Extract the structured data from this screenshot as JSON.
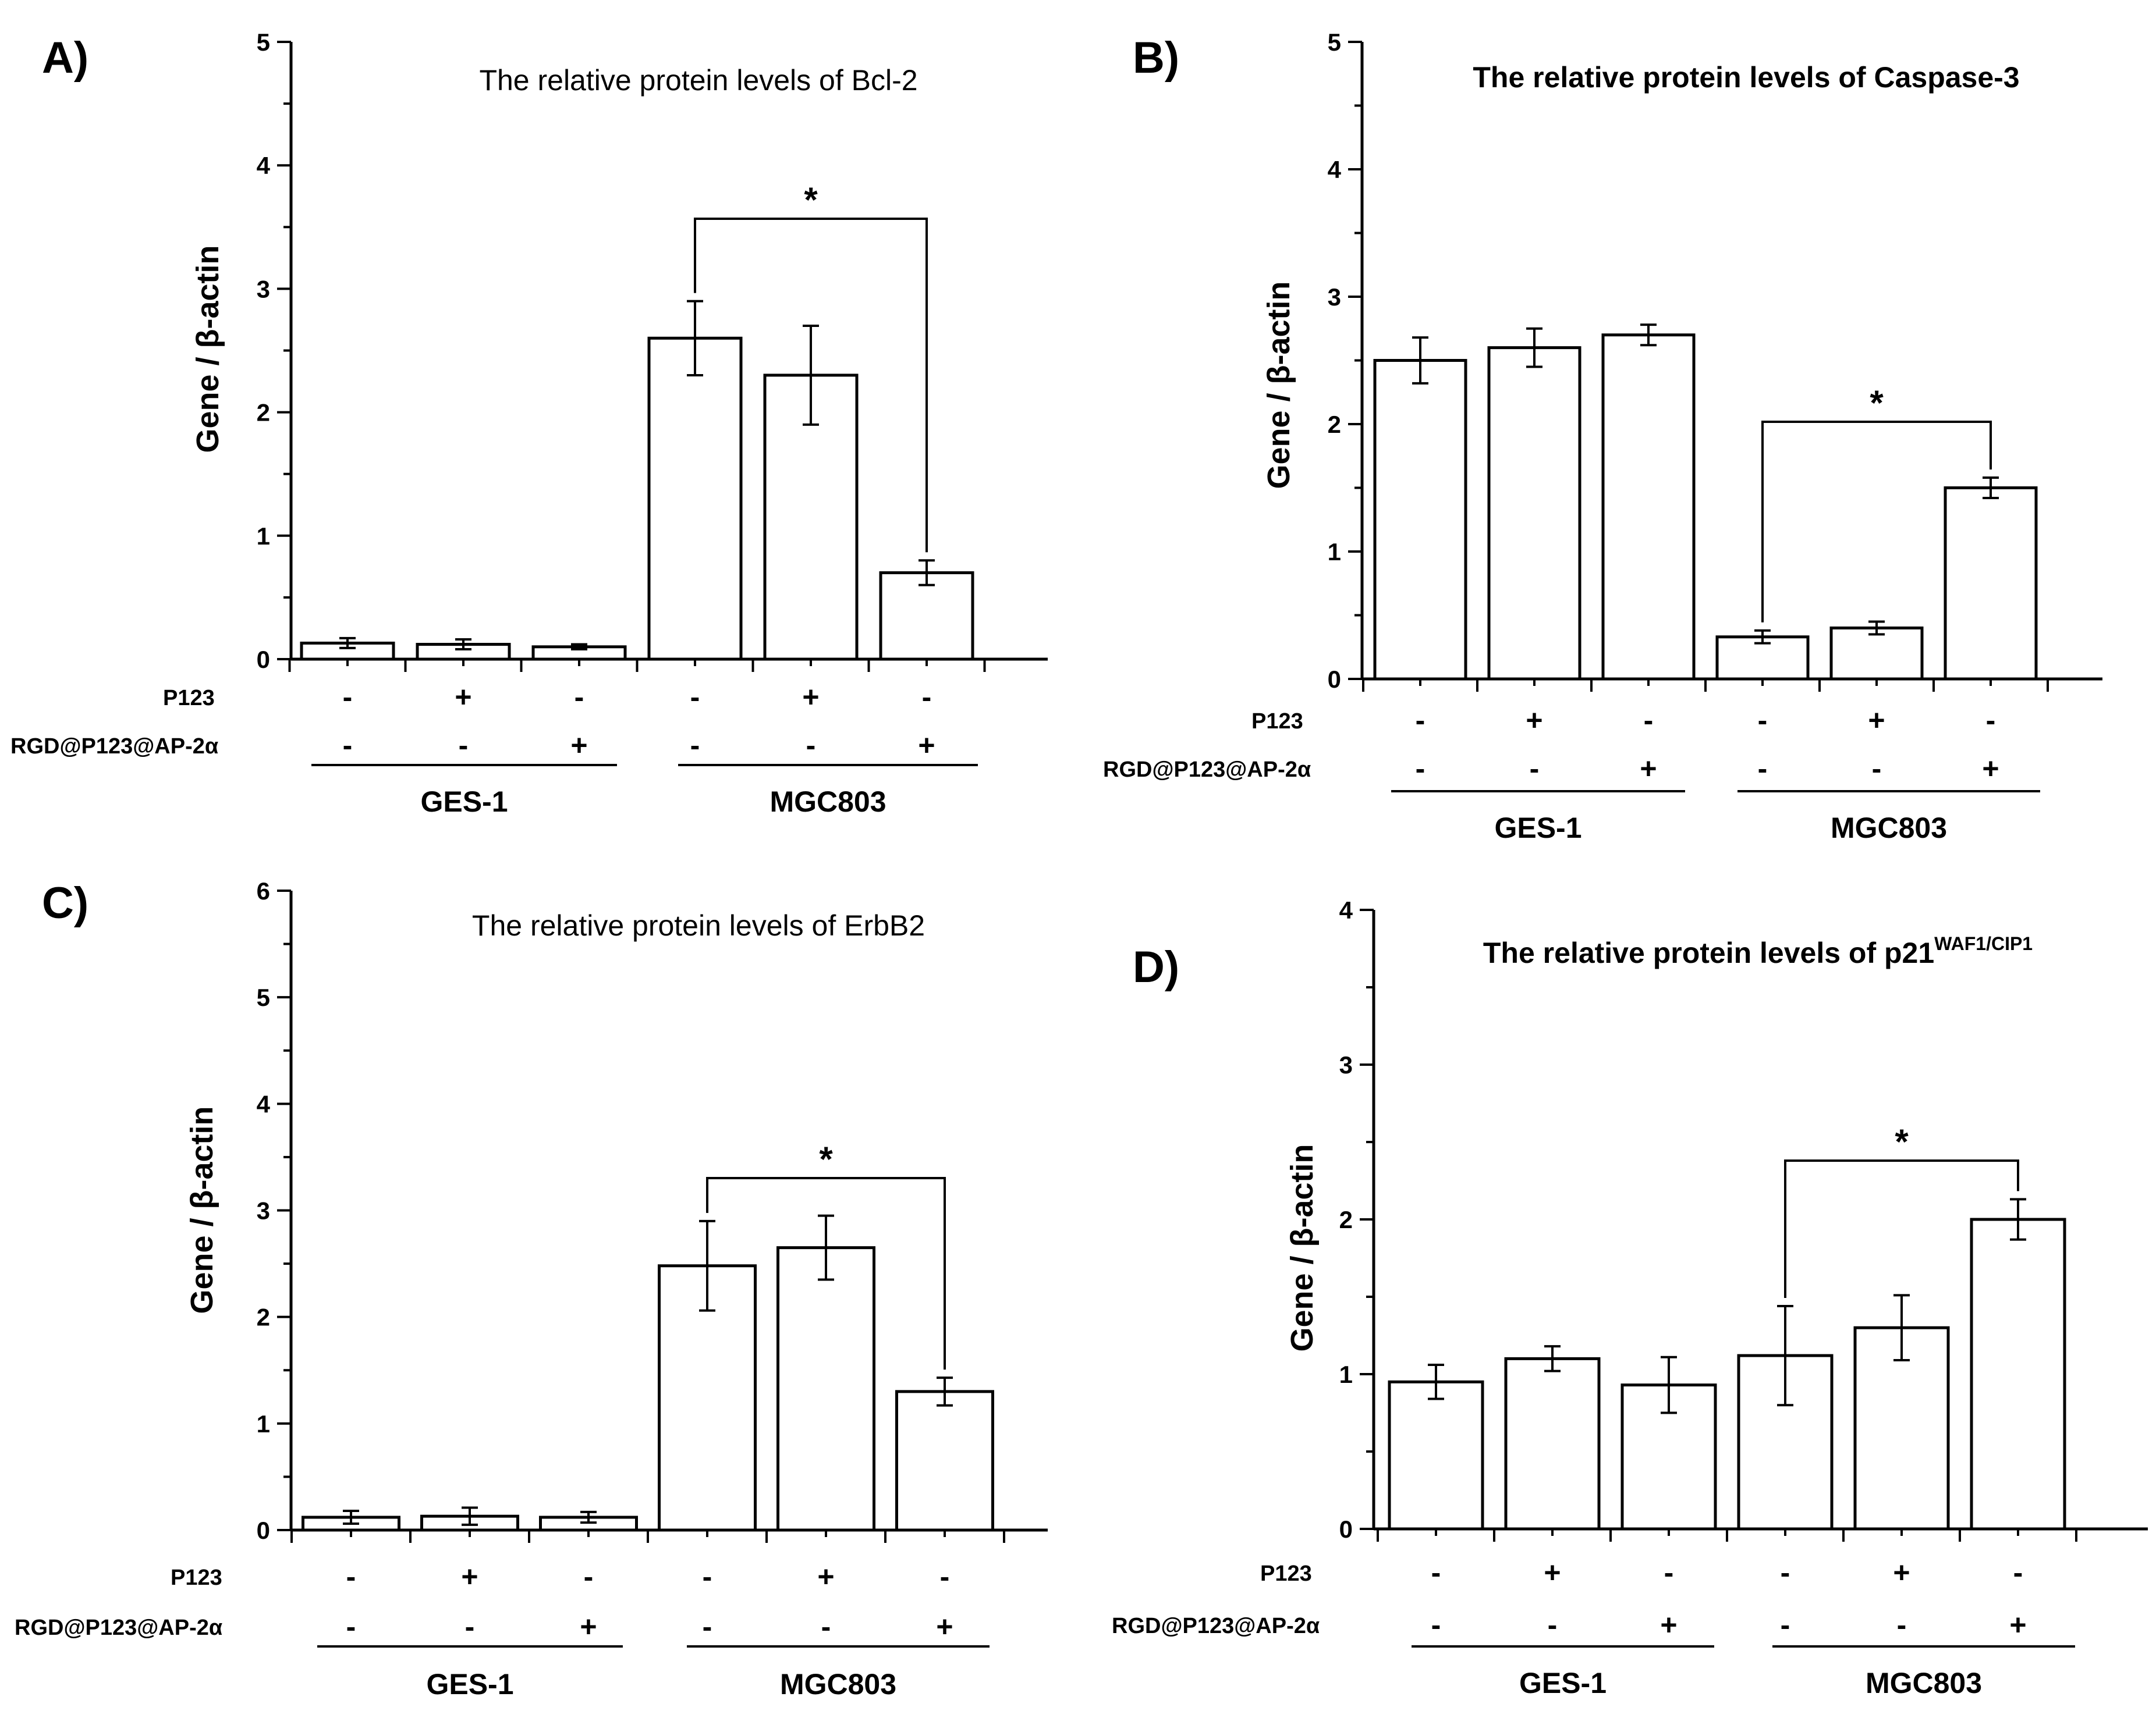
{
  "chart_data": [
    {
      "type": "bar",
      "panel": "A)",
      "title": "The relative protein  levels of Bcl-2",
      "ylabel": "Gene / β-actin",
      "ylim": [
        0,
        5
      ],
      "yticks": [
        "0",
        "1",
        "2",
        "3",
        "4",
        "5"
      ],
      "values": [
        0.13,
        0.12,
        0.1,
        2.6,
        2.3,
        0.7
      ],
      "errors": [
        0.04,
        0.04,
        0.02,
        0.3,
        0.4,
        0.1
      ],
      "rows": [
        {
          "label": "P123",
          "signs": [
            "-",
            "+",
            "-",
            "-",
            "+",
            "-"
          ]
        },
        {
          "label": "RGD@P123@AP-2α",
          "signs": [
            "-",
            "-",
            "+",
            "-",
            "-",
            "+"
          ]
        }
      ],
      "groups": [
        "GES-1",
        "MGC803"
      ],
      "significance": {
        "from": 3,
        "to": 5,
        "label": "*"
      }
    },
    {
      "type": "bar",
      "panel": "B)",
      "title": "The relative protein levels of Caspase-3",
      "ylabel": "Gene / β-actin",
      "ylim": [
        0,
        5
      ],
      "yticks": [
        "0",
        "1",
        "2",
        "3",
        "4",
        "5"
      ],
      "values": [
        2.5,
        2.6,
        2.7,
        0.33,
        0.4,
        1.5
      ],
      "errors": [
        0.18,
        0.15,
        0.08,
        0.05,
        0.05,
        0.08
      ],
      "rows": [
        {
          "label": "P123",
          "signs": [
            "-",
            "+",
            "-",
            "-",
            "+",
            "-"
          ]
        },
        {
          "label": "RGD@P123@AP-2α",
          "signs": [
            "-",
            "-",
            "+",
            "-",
            "-",
            "+"
          ]
        }
      ],
      "groups": [
        "GES-1",
        "MGC803"
      ],
      "significance": {
        "from": 3,
        "to": 5,
        "label": "*"
      }
    },
    {
      "type": "bar",
      "panel": "C)",
      "title": "The relative protein  levels of ErbB2",
      "ylabel": "Gene / β-actin",
      "ylim": [
        0,
        6
      ],
      "yticks": [
        "0",
        "1",
        "2",
        "3",
        "4",
        "5",
        "6"
      ],
      "values": [
        0.12,
        0.13,
        0.12,
        2.48,
        2.65,
        1.3
      ],
      "errors": [
        0.06,
        0.08,
        0.05,
        0.42,
        0.3,
        0.13
      ],
      "rows": [
        {
          "label": "P123",
          "signs": [
            "-",
            "+",
            "-",
            "-",
            "+",
            "-"
          ]
        },
        {
          "label": "RGD@P123@AP-2α",
          "signs": [
            "-",
            "-",
            "+",
            "-",
            "-",
            "+"
          ]
        }
      ],
      "groups": [
        "GES-1",
        "MGC803"
      ],
      "significance": {
        "from": 3,
        "to": 5,
        "label": "*"
      }
    },
    {
      "type": "bar",
      "panel": "D)",
      "title": "The relative protein levels of p21",
      "title_superscript": "WAF1/CIP1",
      "ylabel": "Gene / β-actin",
      "ylim": [
        0,
        4
      ],
      "yticks": [
        "0",
        "1",
        "2",
        "3",
        "4"
      ],
      "values": [
        0.95,
        1.1,
        0.93,
        1.12,
        1.3,
        2.0
      ],
      "errors": [
        0.11,
        0.08,
        0.18,
        0.32,
        0.21,
        0.13
      ],
      "rows": [
        {
          "label": "P123",
          "signs": [
            "-",
            "+",
            "-",
            "-",
            "+",
            "-"
          ]
        },
        {
          "label": "RGD@P123@AP-2α",
          "signs": [
            "-",
            "-",
            "+",
            "-",
            "-",
            "+"
          ]
        }
      ],
      "groups": [
        "GES-1",
        "MGC803"
      ],
      "significance": {
        "from": 3,
        "to": 5,
        "label": "*"
      }
    }
  ]
}
